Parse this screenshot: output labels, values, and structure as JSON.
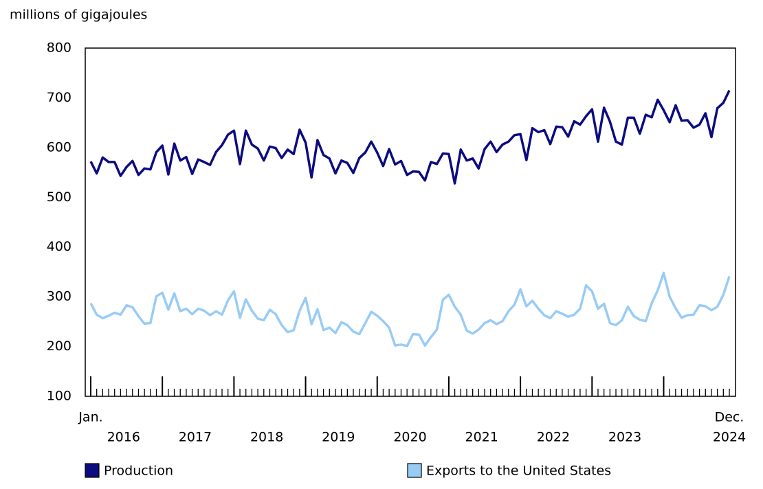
{
  "chart_data": {
    "type": "line",
    "y_axis_label": "millions of gigajoules",
    "categories": [
      "Jan.",
      null,
      null,
      null,
      null,
      null,
      null,
      null,
      null,
      null,
      null,
      null,
      null,
      null,
      null,
      null,
      null,
      null,
      null,
      null,
      null,
      null,
      null,
      null,
      null,
      null,
      null,
      null,
      null,
      null,
      null,
      null,
      null,
      null,
      null,
      null,
      null,
      null,
      null,
      null,
      null,
      null,
      null,
      null,
      null,
      null,
      null,
      null,
      null,
      null,
      null,
      null,
      null,
      null,
      null,
      null,
      null,
      null,
      null,
      null,
      null,
      null,
      null,
      null,
      null,
      null,
      null,
      null,
      null,
      null,
      null,
      null,
      null,
      null,
      null,
      null,
      null,
      null,
      null,
      null,
      null,
      null,
      null,
      null,
      null,
      null,
      null,
      null,
      null,
      null,
      null,
      null,
      null,
      null,
      null,
      null,
      null,
      null,
      null,
      null,
      null,
      null,
      null,
      null,
      null,
      null,
      null,
      "Dec."
    ],
    "year_labels": [
      "2016",
      "2017",
      "2018",
      "2019",
      "2020",
      "2021",
      "2022",
      "2023",
      "2024"
    ],
    "ylim": [
      100,
      800
    ],
    "yticks": [
      100,
      200,
      300,
      400,
      500,
      600,
      700,
      800
    ],
    "legend": "bottom",
    "series": [
      {
        "name": "Production",
        "color": "#0c0c80",
        "values": [
          572,
          548,
          580,
          571,
          571,
          543,
          561,
          573,
          545,
          558,
          556,
          591,
          604,
          546,
          608,
          574,
          581,
          547,
          576,
          571,
          565,
          591,
          605,
          626,
          634,
          567,
          634,
          606,
          598,
          574,
          602,
          599,
          579,
          596,
          587,
          636,
          610,
          540,
          615,
          585,
          578,
          548,
          574,
          569,
          549,
          579,
          590,
          612,
          590,
          563,
          597,
          566,
          573,
          545,
          552,
          551,
          534,
          571,
          567,
          588,
          587,
          528,
          596,
          574,
          578,
          558,
          597,
          612,
          591,
          606,
          612,
          625,
          627,
          575,
          639,
          631,
          635,
          607,
          642,
          641,
          622,
          653,
          646,
          663,
          677,
          612,
          680,
          652,
          612,
          606,
          660,
          660,
          628,
          666,
          661,
          696,
          675,
          651,
          685,
          654,
          655,
          640,
          646,
          669,
          621,
          679,
          690,
          715
        ]
      },
      {
        "name": "Exports to the United States",
        "color": "#99ccf5",
        "values": [
          287,
          264,
          257,
          262,
          268,
          264,
          283,
          279,
          261,
          246,
          247,
          301,
          308,
          274,
          307,
          271,
          276,
          265,
          276,
          272,
          263,
          271,
          264,
          293,
          311,
          258,
          295,
          272,
          256,
          253,
          274,
          265,
          243,
          229,
          233,
          272,
          298,
          245,
          275,
          233,
          238,
          227,
          249,
          243,
          230,
          225,
          247,
          270,
          262,
          251,
          238,
          202,
          204,
          201,
          225,
          224,
          202,
          219,
          234,
          294,
          304,
          280,
          264,
          232,
          226,
          234,
          247,
          253,
          245,
          251,
          271,
          284,
          315,
          281,
          292,
          276,
          263,
          257,
          271,
          266,
          260,
          264,
          276,
          323,
          311,
          276,
          286,
          247,
          243,
          253,
          280,
          261,
          254,
          251,
          287,
          313,
          348,
          300,
          277,
          258,
          263,
          264,
          283,
          281,
          273,
          280,
          304,
          341
        ]
      }
    ]
  }
}
